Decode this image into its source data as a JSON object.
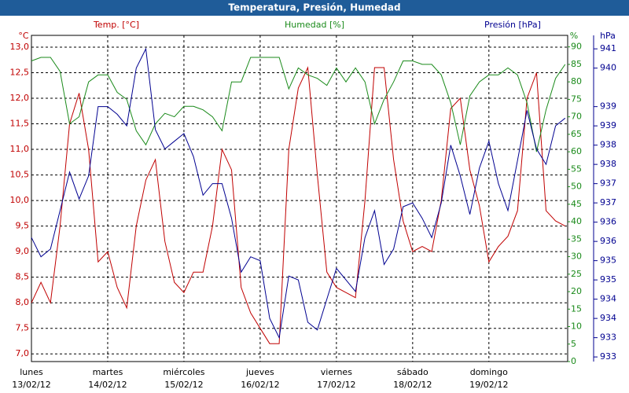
{
  "chart_data": {
    "type": "line",
    "title": "Temperatura, Presión, Humedad",
    "ylabel": "°C",
    "y2label": "%",
    "y3label": "hPa",
    "x": [
      0,
      3,
      6,
      9,
      12,
      15,
      18,
      21,
      24,
      27,
      30,
      33,
      36,
      39,
      42,
      45,
      48,
      51,
      54,
      57,
      60,
      63,
      66,
      69,
      72,
      75,
      78,
      81,
      84,
      87,
      90,
      93,
      96,
      99,
      102,
      105,
      108,
      111,
      114,
      117,
      120,
      123,
      126,
      129,
      132,
      135,
      138,
      141,
      144,
      147,
      150,
      153,
      156,
      159,
      162,
      165,
      168
    ],
    "xlim": [
      0,
      168.8
    ],
    "xticks": [
      {
        "value": 0,
        "label": "lunes",
        "sublabel": "13/02/12"
      },
      {
        "value": 24,
        "label": "martes",
        "sublabel": "14/02/12"
      },
      {
        "value": 48,
        "label": "miércoles",
        "sublabel": "15/02/12"
      },
      {
        "value": 72,
        "label": "jueves",
        "sublabel": "16/02/12"
      },
      {
        "value": 96,
        "label": "viernes",
        "sublabel": "17/02/12"
      },
      {
        "value": 120,
        "label": "sábado",
        "sublabel": "18/02/12"
      },
      {
        "value": 144,
        "label": "domingo",
        "sublabel": "19/02/12"
      }
    ],
    "ylim": [
      6.85,
      13.23
    ],
    "yticks": [
      {
        "value": 7,
        "label": "7,0"
      },
      {
        "value": 7.5,
        "label": "7,5"
      },
      {
        "value": 8,
        "label": "8,0"
      },
      {
        "value": 8.5,
        "label": "8,5"
      },
      {
        "value": 9,
        "label": "9,0"
      },
      {
        "value": 9.5,
        "label": "9,5"
      },
      {
        "value": 10,
        "label": "10,0"
      },
      {
        "value": 10.5,
        "label": "10,5"
      },
      {
        "value": 11,
        "label": "11,0"
      },
      {
        "value": 11.5,
        "label": "11,5"
      },
      {
        "value": 12,
        "label": "12,0"
      },
      {
        "value": 12.5,
        "label": "12,5"
      },
      {
        "value": 13,
        "label": "13,0"
      }
    ],
    "y2lim": [
      0,
      93.3
    ],
    "y2ticks": [
      0,
      5,
      10,
      15,
      20,
      25,
      30,
      35,
      40,
      45,
      50,
      55,
      60,
      65,
      70,
      75,
      80,
      85,
      90
    ],
    "y3lim": [
      932.68,
      941.15
    ],
    "y3ticks": [
      {
        "value": 932.8,
        "label": "933"
      },
      {
        "value": 933.3,
        "label": "933"
      },
      {
        "value": 933.8,
        "label": "934"
      },
      {
        "value": 934.3,
        "label": "934"
      },
      {
        "value": 934.8,
        "label": "935"
      },
      {
        "value": 935.3,
        "label": "935"
      },
      {
        "value": 935.8,
        "label": "936"
      },
      {
        "value": 936.3,
        "label": "936"
      },
      {
        "value": 936.8,
        "label": "937"
      },
      {
        "value": 937.3,
        "label": "937"
      },
      {
        "value": 937.8,
        "label": "938"
      },
      {
        "value": 938.3,
        "label": "938"
      },
      {
        "value": 938.8,
        "label": "939"
      },
      {
        "value": 939.3,
        "label": "939"
      },
      {
        "value": 940.3,
        "label": "940"
      },
      {
        "value": 940.8,
        "label": "941"
      }
    ],
    "grid": true,
    "series": [
      {
        "name": "Temp. [°C]",
        "color": "#c00000",
        "axis": "y",
        "values": [
          8.0,
          8.4,
          8.0,
          9.5,
          11.5,
          12.1,
          11.0,
          8.8,
          9.0,
          8.3,
          7.9,
          9.5,
          10.4,
          10.8,
          9.2,
          8.4,
          8.2,
          8.6,
          8.6,
          9.5,
          11.0,
          10.6,
          8.3,
          7.8,
          7.5,
          7.2,
          7.2,
          11.0,
          12.2,
          12.6,
          10.5,
          8.6,
          8.3,
          8.2,
          8.1,
          10.0,
          12.6,
          12.6,
          10.8,
          9.6,
          9.0,
          9.1,
          9.0,
          10.0,
          11.8,
          12.0,
          10.6,
          9.9,
          8.8,
          9.1,
          9.3,
          9.8,
          12.0,
          12.5,
          9.8,
          9.6,
          9.5
        ]
      },
      {
        "name": "Humedad [%]",
        "color": "#1a8a1a",
        "axis": "y2",
        "values": [
          86,
          87,
          87,
          83,
          68,
          70,
          80,
          82,
          82,
          77,
          75,
          66,
          62,
          68,
          71,
          70,
          73,
          73,
          72,
          70,
          66,
          80,
          80,
          87,
          87,
          87,
          87,
          78,
          84,
          82,
          81,
          79,
          84,
          80,
          84,
          80,
          68,
          75,
          80,
          86,
          86,
          85,
          85,
          82,
          74,
          62,
          76,
          80,
          82,
          82,
          84,
          82,
          74,
          60,
          72,
          81,
          85
        ]
      },
      {
        "name": "Presión [hPa]",
        "color": "#000090",
        "axis": "y3",
        "values": [
          935.9,
          935.4,
          935.6,
          936.6,
          937.6,
          936.9,
          937.5,
          939.3,
          939.3,
          939.1,
          938.8,
          940.3,
          940.8,
          938.7,
          938.2,
          938.4,
          938.6,
          938.0,
          937.0,
          937.3,
          937.3,
          936.4,
          935.0,
          935.4,
          935.3,
          933.8,
          933.3,
          934.9,
          934.8,
          933.7,
          933.5,
          934.3,
          935.1,
          934.8,
          934.5,
          935.9,
          936.6,
          935.2,
          935.6,
          936.7,
          936.8,
          936.4,
          935.9,
          936.8,
          938.3,
          937.5,
          936.5,
          937.7,
          938.4,
          937.3,
          936.6,
          937.9,
          939.2,
          938.2,
          937.8,
          938.8,
          939.0
        ]
      }
    ]
  }
}
